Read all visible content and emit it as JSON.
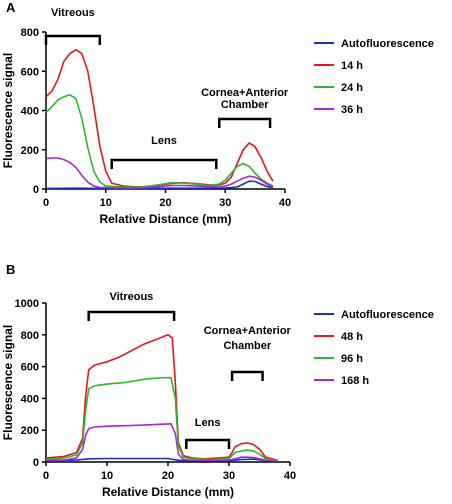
{
  "chart_data": [
    {
      "type": "line",
      "panel_label": "A",
      "xlabel": "Relative Distance (mm)",
      "ylabel": "Fluorescence signal",
      "xlim": [
        0,
        40
      ],
      "ylim": [
        0,
        800
      ],
      "xticks": [
        0,
        10,
        20,
        30,
        40
      ],
      "yticks": [
        0,
        200,
        400,
        600,
        800
      ],
      "legend_position": "right",
      "series": [
        {
          "name": "Autofluorescence",
          "color": "#1f2fc4",
          "points": [
            [
              0,
              3
            ],
            [
              5,
              4
            ],
            [
              10,
              3
            ],
            [
              15,
              3
            ],
            [
              20,
              4
            ],
            [
              25,
              4
            ],
            [
              30,
              5
            ],
            [
              32,
              10
            ],
            [
              33,
              25
            ],
            [
              34,
              40
            ],
            [
              35,
              38
            ],
            [
              36,
              25
            ],
            [
              37,
              12
            ],
            [
              38,
              8
            ]
          ]
        },
        {
          "name": "14 h",
          "color": "#e8161b",
          "points": [
            [
              0,
              470
            ],
            [
              1,
              500
            ],
            [
              2,
              560
            ],
            [
              3,
              650
            ],
            [
              4,
              690
            ],
            [
              5,
              710
            ],
            [
              6,
              690
            ],
            [
              7,
              600
            ],
            [
              8,
              420
            ],
            [
              9,
              220
            ],
            [
              10,
              90
            ],
            [
              11,
              30
            ],
            [
              13,
              15
            ],
            [
              16,
              10
            ],
            [
              19,
              20
            ],
            [
              21,
              28
            ],
            [
              23,
              32
            ],
            [
              25,
              28
            ],
            [
              27,
              22
            ],
            [
              28,
              20
            ],
            [
              29,
              20
            ],
            [
              30,
              30
            ],
            [
              31,
              60
            ],
            [
              32,
              130
            ],
            [
              33,
              200
            ],
            [
              34,
              235
            ],
            [
              35,
              215
            ],
            [
              36,
              160
            ],
            [
              37,
              90
            ],
            [
              38,
              40
            ]
          ]
        },
        {
          "name": "24 h",
          "color": "#2db82d",
          "points": [
            [
              0,
              390
            ],
            [
              1,
              420
            ],
            [
              2,
              455
            ],
            [
              3,
              470
            ],
            [
              4,
              480
            ],
            [
              5,
              460
            ],
            [
              6,
              360
            ],
            [
              7,
              210
            ],
            [
              8,
              90
            ],
            [
              9,
              35
            ],
            [
              10,
              15
            ],
            [
              13,
              10
            ],
            [
              16,
              10
            ],
            [
              19,
              22
            ],
            [
              21,
              32
            ],
            [
              23,
              30
            ],
            [
              25,
              25
            ],
            [
              27,
              18
            ],
            [
              29,
              25
            ],
            [
              30,
              45
            ],
            [
              31,
              80
            ],
            [
              32,
              115
            ],
            [
              33,
              130
            ],
            [
              34,
              115
            ],
            [
              35,
              80
            ],
            [
              36,
              50
            ],
            [
              37,
              30
            ],
            [
              38,
              15
            ]
          ]
        },
        {
          "name": "36 h",
          "color": "#a428d6",
          "points": [
            [
              0,
              155
            ],
            [
              1,
              158
            ],
            [
              2,
              158
            ],
            [
              3,
              150
            ],
            [
              4,
              135
            ],
            [
              5,
              110
            ],
            [
              6,
              70
            ],
            [
              7,
              35
            ],
            [
              8,
              15
            ],
            [
              9,
              8
            ],
            [
              12,
              5
            ],
            [
              16,
              5
            ],
            [
              19,
              12
            ],
            [
              21,
              18
            ],
            [
              23,
              18
            ],
            [
              25,
              16
            ],
            [
              27,
              12
            ],
            [
              29,
              10
            ],
            [
              30,
              15
            ],
            [
              31,
              25
            ],
            [
              32,
              40
            ],
            [
              33,
              55
            ],
            [
              34,
              65
            ],
            [
              35,
              60
            ],
            [
              36,
              45
            ],
            [
              37,
              25
            ],
            [
              38,
              10
            ]
          ]
        }
      ],
      "annotations": [
        {
          "text": "Vitreous",
          "x_range": [
            0,
            9
          ]
        },
        {
          "text": "Lens",
          "x_range": [
            11,
            28.5
          ]
        },
        {
          "text": "Cornea+Anterior",
          "text2": "Chamber",
          "x_range": [
            29,
            37.5
          ]
        }
      ]
    },
    {
      "type": "line",
      "panel_label": "B",
      "xlabel": "Relative Distance (mm)",
      "ylabel": "Fluorescence signal",
      "xlim": [
        0,
        40
      ],
      "ylim": [
        0,
        1000
      ],
      "xticks": [
        0,
        10,
        20,
        30,
        40
      ],
      "yticks": [
        0,
        200,
        400,
        600,
        800,
        1000
      ],
      "legend_position": "right",
      "series": [
        {
          "name": "Autofluorescence",
          "color": "#1f2fc4",
          "points": [
            [
              0,
              10
            ],
            [
              5,
              12
            ],
            [
              7,
              20
            ],
            [
              10,
              22
            ],
            [
              15,
              22
            ],
            [
              20,
              22
            ],
            [
              21,
              15
            ],
            [
              22,
              10
            ],
            [
              25,
              8
            ],
            [
              30,
              8
            ],
            [
              32,
              15
            ],
            [
              34,
              18
            ],
            [
              36,
              10
            ],
            [
              38,
              5
            ]
          ]
        },
        {
          "name": "48 h",
          "color": "#e8161b",
          "points": [
            [
              0,
              25
            ],
            [
              3,
              35
            ],
            [
              5,
              60
            ],
            [
              6,
              150
            ],
            [
              6.5,
              420
            ],
            [
              7,
              580
            ],
            [
              8,
              610
            ],
            [
              10,
              630
            ],
            [
              12,
              660
            ],
            [
              14,
              700
            ],
            [
              16,
              740
            ],
            [
              18,
              770
            ],
            [
              20,
              800
            ],
            [
              20.7,
              780
            ],
            [
              21.2,
              500
            ],
            [
              21.7,
              120
            ],
            [
              22.5,
              40
            ],
            [
              24,
              25
            ],
            [
              26,
              20
            ],
            [
              28,
              25
            ],
            [
              30,
              30
            ],
            [
              30.5,
              60
            ],
            [
              31,
              95
            ],
            [
              32,
              115
            ],
            [
              33,
              120
            ],
            [
              34,
              110
            ],
            [
              35,
              80
            ],
            [
              36,
              30
            ],
            [
              38,
              10
            ]
          ]
        },
        {
          "name": "96 h",
          "color": "#2db82d",
          "points": [
            [
              0,
              15
            ],
            [
              3,
              25
            ],
            [
              5,
              45
            ],
            [
              6,
              120
            ],
            [
              6.5,
              330
            ],
            [
              7,
              460
            ],
            [
              8,
              480
            ],
            [
              10,
              490
            ],
            [
              13,
              500
            ],
            [
              16,
              520
            ],
            [
              19,
              530
            ],
            [
              20.5,
              530
            ],
            [
              21.2,
              400
            ],
            [
              21.7,
              100
            ],
            [
              22.5,
              30
            ],
            [
              24,
              20
            ],
            [
              27,
              15
            ],
            [
              30,
              20
            ],
            [
              30.5,
              40
            ],
            [
              31,
              60
            ],
            [
              32,
              70
            ],
            [
              33,
              75
            ],
            [
              34,
              70
            ],
            [
              35,
              50
            ],
            [
              36,
              20
            ],
            [
              38,
              8
            ]
          ]
        },
        {
          "name": "168 h",
          "color": "#a428d6",
          "points": [
            [
              0,
              10
            ],
            [
              3,
              12
            ],
            [
              5,
              25
            ],
            [
              6,
              80
            ],
            [
              6.5,
              170
            ],
            [
              7,
              210
            ],
            [
              8,
              220
            ],
            [
              10,
              225
            ],
            [
              13,
              228
            ],
            [
              16,
              232
            ],
            [
              19,
              238
            ],
            [
              20.5,
              240
            ],
            [
              21.2,
              180
            ],
            [
              21.7,
              50
            ],
            [
              22.5,
              15
            ],
            [
              24,
              10
            ],
            [
              27,
              10
            ],
            [
              30,
              12
            ],
            [
              31,
              20
            ],
            [
              32,
              30
            ],
            [
              33,
              30
            ],
            [
              34,
              28
            ],
            [
              35,
              20
            ],
            [
              36,
              10
            ],
            [
              38,
              5
            ]
          ]
        }
      ],
      "annotations": [
        {
          "text": "Vitreous",
          "x_range": [
            7,
            21
          ]
        },
        {
          "text": "Lens",
          "x_range": [
            23,
            30
          ]
        },
        {
          "text": "Cornea+Anterior",
          "text2": "Chamber",
          "x_range": [
            30.5,
            35.5
          ]
        }
      ]
    }
  ]
}
